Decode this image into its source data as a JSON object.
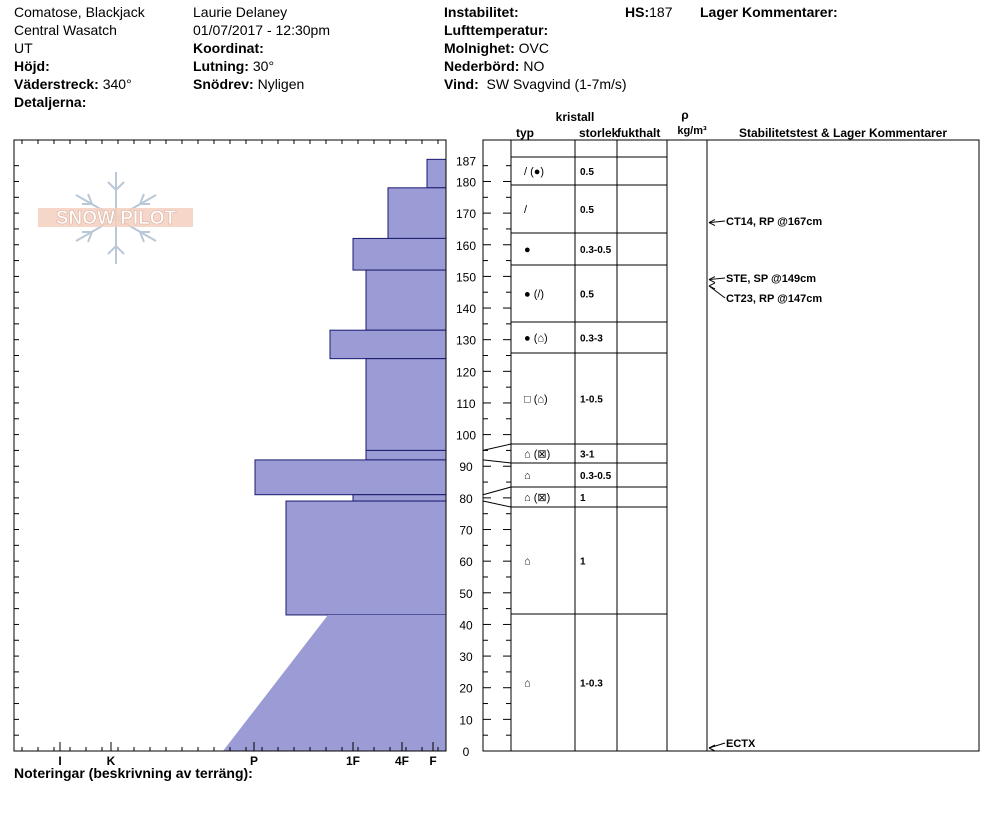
{
  "header": {
    "location": "Comatose, Blackjack",
    "range": "Central Wasatch",
    "state": "UT",
    "elevation_label": "Höjd:",
    "aspect_label": "Väderstreck:",
    "aspect_value": "340°",
    "details_label": "Detaljerna:",
    "observer": "Laurie Delaney",
    "datetime": "01/07/2017 - 12:30pm",
    "coord_label": "Koordinat:",
    "slope_label": "Lutning:",
    "slope_value": "30°",
    "drift_label": "Snödrev:",
    "drift_value": "Nyligen",
    "instability_label": "Instabilitet:",
    "airtemp_label": "Lufttemperatur:",
    "sky_label": "Molnighet:",
    "sky_value": "OVC",
    "precip_label": "Nederbörd:",
    "precip_value": "NO",
    "wind_label": "Vind:",
    "wind_value": "SW Svagvind (1-7m/s)",
    "hs_label": "HS:",
    "hs_value": "187",
    "layer_comments_label": "Lager Kommentarer:"
  },
  "logo": {
    "text": "SNOW PILOT"
  },
  "footer": {
    "notes_label": "Noteringar (beskrivning av terräng):"
  },
  "chart_data": {
    "type": "bar",
    "title": "",
    "ylabel": "",
    "ylim": [
      0,
      190
    ],
    "yticks": [
      0,
      10,
      20,
      30,
      40,
      50,
      60,
      70,
      80,
      90,
      100,
      110,
      120,
      130,
      140,
      150,
      160,
      170,
      180
    ],
    "hs_tick": 187,
    "hardness_scale": [
      "I",
      "K",
      "P",
      "1F",
      "4F",
      "F"
    ],
    "hardness_profile": [
      {
        "top": 187,
        "bottom": 178,
        "hardness": "F-"
      },
      {
        "top": 178,
        "bottom": 162,
        "hardness": "4F-"
      },
      {
        "top": 162,
        "bottom": 152,
        "hardness": "1F"
      },
      {
        "top": 152,
        "bottom": 133,
        "hardness": "4F+"
      },
      {
        "top": 133,
        "bottom": 124,
        "hardness": "1F-"
      },
      {
        "top": 124,
        "bottom": 95,
        "hardness": "4F+"
      },
      {
        "top": 95,
        "bottom": 92,
        "hardness": "4F+"
      },
      {
        "top": 92,
        "bottom": 81,
        "hardness": "P-"
      },
      {
        "top": 81,
        "bottom": 79,
        "hardness": "1F"
      },
      {
        "top": 79,
        "bottom": 43,
        "hardness": "P+"
      },
      {
        "top": 43,
        "bottom": 0,
        "hardness": "gradient P- to 4F+"
      }
    ],
    "columns": {
      "type": "typ",
      "crystal": "kristall",
      "size": "storlek",
      "moisture": "fukthalt",
      "density_symbol": "ρ",
      "density_unit": "kg/m³",
      "stability": "Stabilitetstest & Lager Kommentarer"
    },
    "layers": [
      {
        "top": 187,
        "bottom": 178,
        "grain": "/ (●)",
        "size": "0.5"
      },
      {
        "top": 178,
        "bottom": 162,
        "grain": "/",
        "size": "0.5"
      },
      {
        "top": 162,
        "bottom": 152,
        "grain": "●",
        "size": "0.3-0.5"
      },
      {
        "top": 152,
        "bottom": 134,
        "grain": "● (/)",
        "size": "0.5"
      },
      {
        "top": 134,
        "bottom": 124,
        "grain": "● (⌂)",
        "size": "0.3-3"
      },
      {
        "top": 124,
        "bottom": 96,
        "grain": "□ (⌂)",
        "size": "1-0.5"
      },
      {
        "top": 96,
        "bottom": 90,
        "grain": "⌂ (⊠)",
        "size": "3-1"
      },
      {
        "top": 90,
        "bottom": 83,
        "grain": "⌂",
        "size": "0.3-0.5"
      },
      {
        "top": 83,
        "bottom": 77,
        "grain": "⌂ (⊠)",
        "size": "1"
      },
      {
        "top": 77,
        "bottom": 43,
        "grain": "⌂",
        "size": "1"
      },
      {
        "top": 43,
        "bottom": 0,
        "grain": "⌂",
        "size": "1-0.3"
      }
    ],
    "tests": [
      {
        "depth": 167,
        "label": "CT14, RP @167cm"
      },
      {
        "depth": 149,
        "label": "STE, SP @149cm"
      },
      {
        "depth": 147,
        "label": "CT23, RP @147cm"
      },
      {
        "depth": 0,
        "label": "ECTX"
      }
    ],
    "profile_color": "#9b9bd6",
    "outline_color": "#1a1a6e"
  }
}
